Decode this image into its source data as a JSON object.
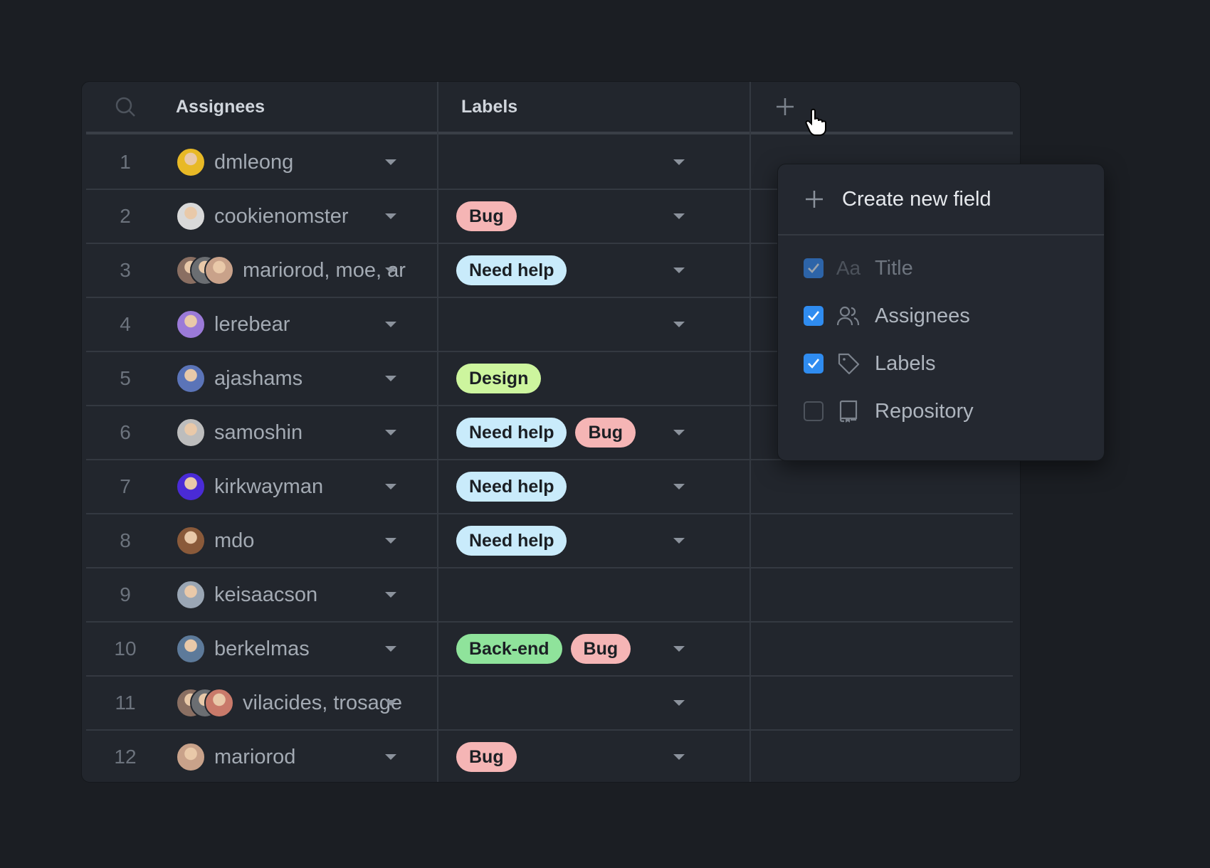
{
  "header": {
    "assignees": "Assignees",
    "labels": "Labels",
    "search_icon": "search-icon",
    "add_icon": "plus-icon"
  },
  "label_colors": {
    "Bug": "#f5b5b5",
    "Need help": "#c9ebfb",
    "Design": "#cdf59e",
    "Back-end": "#8fe39b"
  },
  "rows": [
    {
      "num": "1",
      "assignee": "dmleong",
      "avatars": [
        "#e8b926"
      ],
      "labels": []
    },
    {
      "num": "2",
      "assignee": "cookienomster",
      "avatars": [
        "#d9d9d9"
      ],
      "labels": [
        "Bug"
      ]
    },
    {
      "num": "3",
      "assignee": "mariorod, moe, ar",
      "avatars": [
        "#8a6f62",
        "#6b6e72",
        "#c9a28a"
      ],
      "labels": [
        "Need help"
      ]
    },
    {
      "num": "4",
      "assignee": "lerebear",
      "avatars": [
        "#9b7ad8"
      ],
      "labels": []
    },
    {
      "num": "5",
      "assignee": "ajashams",
      "avatars": [
        "#5b74b8"
      ],
      "labels": [
        "Design"
      ]
    },
    {
      "num": "6",
      "assignee": "samoshin",
      "avatars": [
        "#bdbdbd"
      ],
      "labels": [
        "Need help",
        "Bug"
      ]
    },
    {
      "num": "7",
      "assignee": "kirkwayman",
      "avatars": [
        "#4a2bd6"
      ],
      "labels": [
        "Need help"
      ]
    },
    {
      "num": "8",
      "assignee": "mdo",
      "avatars": [
        "#8a5a3a"
      ],
      "labels": [
        "Need help"
      ]
    },
    {
      "num": "9",
      "assignee": "keisaacson",
      "avatars": [
        "#9aa6b4"
      ],
      "labels": []
    },
    {
      "num": "10",
      "assignee": "berkelmas",
      "avatars": [
        "#5d7a9a"
      ],
      "labels": [
        "Back-end",
        "Bug"
      ]
    },
    {
      "num": "11",
      "assignee": "vilacides, trosage",
      "avatars": [
        "#8a6f62",
        "#6b6e72",
        "#c97a6a"
      ],
      "labels": []
    },
    {
      "num": "12",
      "assignee": "mariorod",
      "avatars": [
        "#c9a28a"
      ],
      "labels": [
        "Bug"
      ]
    }
  ],
  "menu": {
    "create": "Create new field",
    "fields": [
      {
        "label": "Title",
        "checked": true,
        "disabled": true,
        "icon": "text-icon",
        "icon_text": "Aa"
      },
      {
        "label": "Assignees",
        "checked": true,
        "disabled": false,
        "icon": "people-icon"
      },
      {
        "label": "Labels",
        "checked": true,
        "disabled": false,
        "icon": "tag-icon"
      },
      {
        "label": "Repository",
        "checked": false,
        "disabled": false,
        "icon": "repo-icon"
      }
    ]
  }
}
